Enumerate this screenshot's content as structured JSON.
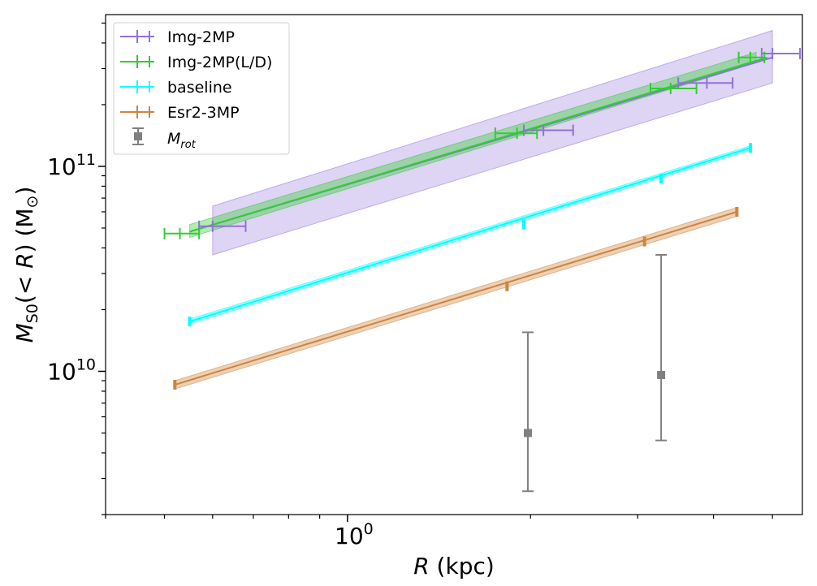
{
  "chart_data": {
    "type": "line",
    "xscale": "log",
    "yscale": "log",
    "xlabel": "R (kpc)",
    "ylabel": "M_S0(<R) (M_sun)",
    "xlim": [
      0.4,
      5.6
    ],
    "ylim": [
      2000000000.0,
      550000000000.0
    ],
    "x_tick_labels": [
      {
        "value": 1.0,
        "label": "10^0"
      }
    ],
    "y_tick_labels": [
      {
        "value": 10000000000.0,
        "label": "10^10"
      },
      {
        "value": 100000000000.0,
        "label": "10^11"
      }
    ],
    "legend_position": "top-left",
    "series": [
      {
        "name": "Img-2MP",
        "color": "#9370DB",
        "line": [
          [
            0.55,
            48000000000.0
          ],
          [
            5.0,
            340000000000.0
          ]
        ],
        "band": {
          "x": [
            0.6,
            5.0
          ],
          "lower": [
            37000000000.0,
            255000000000.0
          ],
          "upper": [
            64000000000.0,
            460000000000.0
          ]
        },
        "points": [
          {
            "x": 0.6,
            "y": 51000000000.0,
            "xerr": [
              0.57,
              0.68
            ]
          },
          {
            "x": 2.1,
            "y": 150000000000.0,
            "xerr": [
              1.95,
              2.35
            ]
          },
          {
            "x": 3.9,
            "y": 255000000000.0,
            "xerr": [
              3.5,
              4.3
            ]
          },
          {
            "x": 5.0,
            "y": 355000000000.0,
            "xerr": [
              4.8,
              5.55
            ]
          }
        ]
      },
      {
        "name": "Img-2MP(L/D)",
        "color": "#32CD32",
        "line": [
          [
            0.55,
            48000000000.0
          ],
          [
            4.9,
            340000000000.0
          ]
        ],
        "band": {
          "x": [
            0.55,
            4.7
          ],
          "lower": [
            45000000000.0,
            320000000000.0
          ],
          "upper": [
            52000000000.0,
            360000000000.0
          ]
        },
        "points": [
          {
            "x": 0.53,
            "y": 47000000000.0,
            "xerr": [
              0.5,
              0.57
            ]
          },
          {
            "x": 1.9,
            "y": 145000000000.0,
            "xerr": [
              1.75,
              2.05
            ]
          },
          {
            "x": 3.4,
            "y": 240000000000.0,
            "xerr": [
              3.15,
              3.75
            ]
          },
          {
            "x": 4.6,
            "y": 340000000000.0,
            "xerr": [
              4.4,
              4.85
            ]
          }
        ]
      },
      {
        "name": "baseline",
        "color": "#00FFFF",
        "line": [
          [
            0.55,
            17500000000.0
          ],
          [
            4.6,
            123000000000.0
          ]
        ],
        "band": {
          "x": [
            0.55,
            4.6
          ],
          "lower": [
            17000000000.0,
            120000000000.0
          ],
          "upper": [
            18000000000.0,
            126000000000.0
          ]
        },
        "points": [
          {
            "x": 0.55,
            "y": 17500000000.0
          },
          {
            "x": 1.95,
            "y": 52000000000.0
          },
          {
            "x": 3.28,
            "y": 87000000000.0
          },
          {
            "x": 4.6,
            "y": 123000000000.0
          }
        ]
      },
      {
        "name": "Esr2-3MP",
        "color": "#CD853F",
        "line": [
          [
            0.52,
            8600000000.0
          ],
          [
            4.37,
            60000000000.0
          ]
        ],
        "band": {
          "x": [
            0.52,
            4.37
          ],
          "lower": [
            8200000000.0,
            57000000000.0
          ],
          "upper": [
            9000000000.0,
            63000000000.0
          ]
        },
        "points": [
          {
            "x": 0.52,
            "y": 8600000000.0
          },
          {
            "x": 1.83,
            "y": 26000000000.0
          },
          {
            "x": 3.08,
            "y": 43000000000.0
          },
          {
            "x": 4.37,
            "y": 60000000000.0
          }
        ]
      },
      {
        "name": "M_rot",
        "color": "#808080",
        "marker": "square",
        "points": [
          {
            "x": 1.98,
            "y": 5000000000.0,
            "yerr": [
              2600000000.0,
              15500000000.0
            ]
          },
          {
            "x": 3.28,
            "y": 9600000000.0,
            "yerr": [
              4600000000.0,
              37000000000.0
            ]
          }
        ]
      }
    ]
  }
}
